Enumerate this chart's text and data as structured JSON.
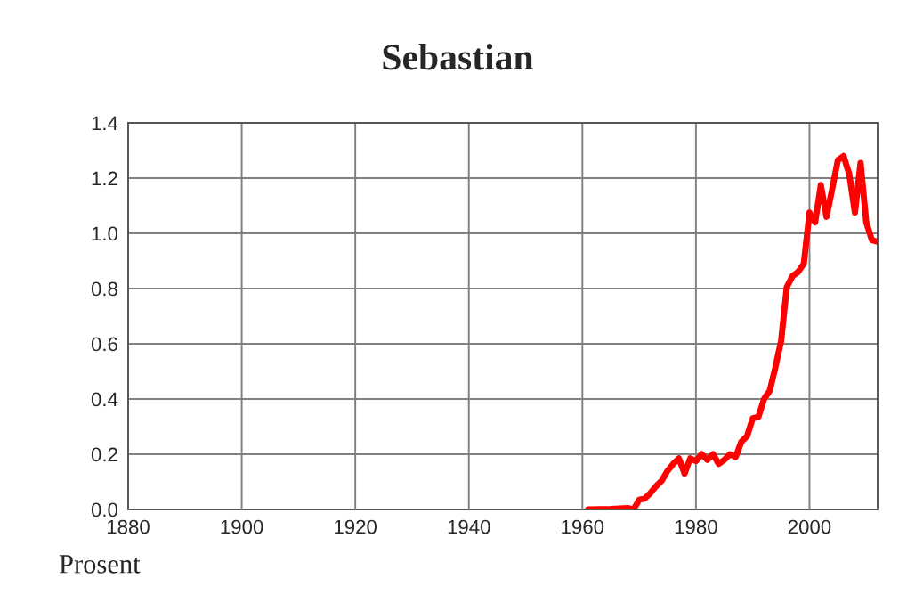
{
  "chart_data": {
    "type": "line",
    "title": "Sebastian",
    "annotations": [
      "Prosent"
    ],
    "x": [
      1961,
      1965,
      1968,
      1969,
      1970,
      1971,
      1972,
      1973,
      1974,
      1975,
      1976,
      1977,
      1978,
      1979,
      1980,
      1981,
      1982,
      1983,
      1984,
      1985,
      1986,
      1987,
      1988,
      1989,
      1990,
      1991,
      1992,
      1993,
      1994,
      1995,
      1996,
      1997,
      1998,
      1999,
      2000,
      2001,
      2002,
      2003,
      2004,
      2005,
      2006,
      2007,
      2008,
      2009,
      2010,
      2011,
      2012
    ],
    "series": [
      {
        "color": "#ff0000",
        "values": [
          0.0,
          0.002,
          0.005,
          0.0,
          0.035,
          0.04,
          0.06,
          0.085,
          0.105,
          0.14,
          0.165,
          0.185,
          0.13,
          0.185,
          0.175,
          0.2,
          0.18,
          0.2,
          0.165,
          0.18,
          0.2,
          0.19,
          0.245,
          0.265,
          0.33,
          0.335,
          0.4,
          0.43,
          0.515,
          0.61,
          0.805,
          0.845,
          0.86,
          0.89,
          1.075,
          1.04,
          1.175,
          1.06,
          1.16,
          1.265,
          1.28,
          1.215,
          1.075,
          1.255,
          1.04,
          0.975,
          0.97
        ]
      }
    ],
    "xlim": [
      1880,
      2012
    ],
    "xticks": [
      1880,
      1900,
      1920,
      1940,
      1960,
      1980,
      2000
    ],
    "ylim": [
      0,
      1.4
    ],
    "yticks": [
      {
        "value": 0,
        "label": "0.0"
      },
      {
        "value": 0.2,
        "label": "0.2"
      },
      {
        "value": 0.4,
        "label": "0.4"
      },
      {
        "value": 0.6,
        "label": "0.6"
      },
      {
        "value": 0.8,
        "label": "0.8"
      },
      {
        "value": 1.0,
        "label": "1.0"
      },
      {
        "value": 1.2,
        "label": "1.2"
      },
      {
        "value": 1.4,
        "label": "1.4"
      }
    ],
    "grid": true,
    "legend": false,
    "marker": "none",
    "line_style": "solid"
  }
}
